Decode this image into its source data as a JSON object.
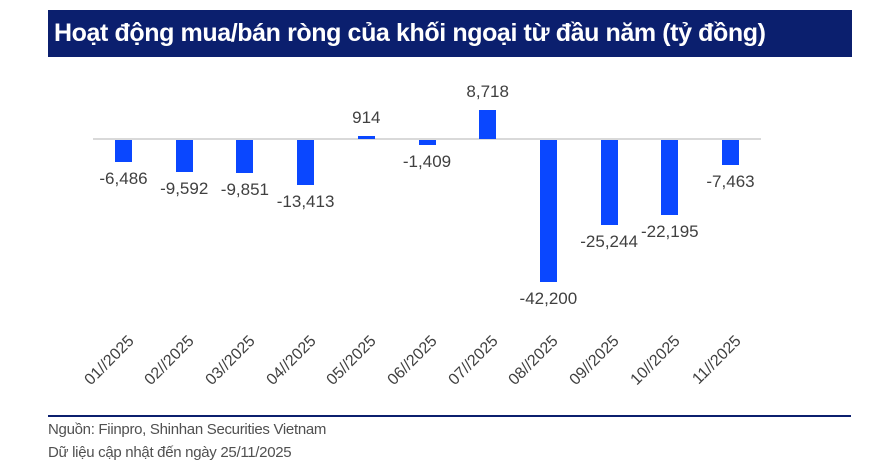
{
  "title": "Hoạt động mua/bán ròng của khối ngoại từ đầu năm (tỷ đồng)",
  "footer": {
    "source": "Nguồn: Fiinpro, Shinhan Securities Vietnam",
    "updated": "Dữ liệu cập nhật đến ngày 25/11/2025"
  },
  "colors": {
    "bar": "#0a47ff",
    "title_bg": "#0b1f6e",
    "axis": "#d9d9d9"
  },
  "chart_data": {
    "type": "bar",
    "title": "Hoạt động mua/bán ròng của khối ngoại từ đầu năm (tỷ đồng)",
    "xlabel": "",
    "ylabel": "",
    "categories": [
      "01//2025",
      "02//2025",
      "03//2025",
      "04//2025",
      "05//2025",
      "06//2025",
      "07//2025",
      "08//2025",
      "09//2025",
      "10//2025",
      "11//2025"
    ],
    "values": [
      -6486,
      -9592,
      -9851,
      -13413,
      914,
      -1409,
      8718,
      -42200,
      -25244,
      -22195,
      -7463
    ],
    "value_labels": [
      "-6,486",
      "-9,592",
      "-9,851",
      "-13,413",
      "914",
      "-1,409",
      "8,718",
      "-42,200",
      "-25,244",
      "-22,195",
      "-7,463"
    ],
    "grid": false,
    "legend": null,
    "data_labels": true
  }
}
